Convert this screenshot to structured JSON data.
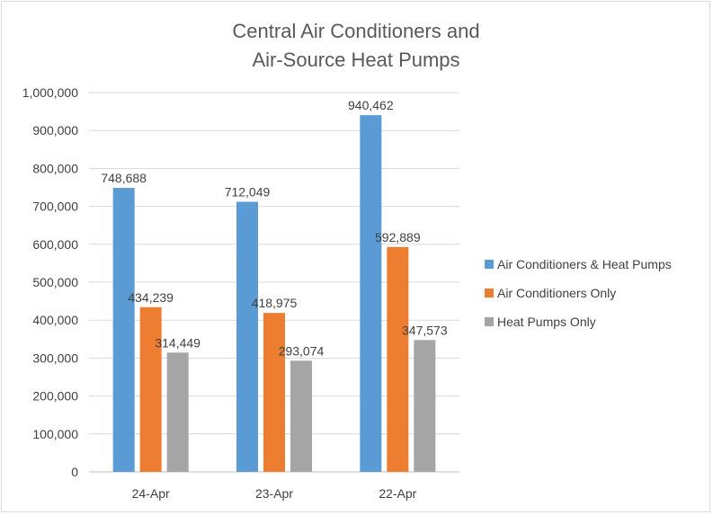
{
  "chart_data": {
    "type": "bar",
    "title_lines": [
      "Central Air Conditioners and",
      "Air-Source Heat Pumps"
    ],
    "categories": [
      "24-Apr",
      "23-Apr",
      "22-Apr"
    ],
    "series": [
      {
        "name": "Air Conditioners & Heat Pumps",
        "values": [
          748688,
          712049,
          940462
        ],
        "color": "#5b9bd5"
      },
      {
        "name": "Air Conditioners Only",
        "values": [
          434239,
          418975,
          592889
        ],
        "color": "#ed7d31"
      },
      {
        "name": "Heat Pumps Only",
        "values": [
          314449,
          293074,
          347573
        ],
        "color": "#a5a5a5"
      }
    ],
    "data_labels": [
      [
        "748,688",
        "712,049",
        "940,462"
      ],
      [
        "434,239",
        "418,975",
        "592,889"
      ],
      [
        "314,449",
        "293,074",
        "347,573"
      ]
    ],
    "ylim": [
      0,
      1000000
    ],
    "yticks": [
      0,
      100000,
      200000,
      300000,
      400000,
      500000,
      600000,
      700000,
      800000,
      900000,
      1000000
    ],
    "ytick_labels": [
      "0",
      "100,000",
      "200,000",
      "300,000",
      "400,000",
      "500,000",
      "600,000",
      "700,000",
      "800,000",
      "900,000",
      "1,000,000"
    ],
    "grid": true,
    "legend_position": "right"
  }
}
